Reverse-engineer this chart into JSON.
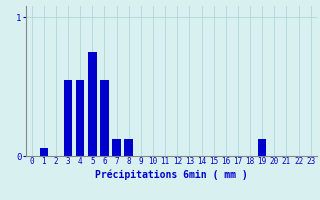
{
  "title": "",
  "xlabel": "Précipitations 6min ( mm )",
  "categories": [
    0,
    1,
    2,
    3,
    4,
    5,
    6,
    7,
    8,
    9,
    10,
    11,
    12,
    13,
    14,
    15,
    16,
    17,
    18,
    19,
    20,
    21,
    22,
    23
  ],
  "values": [
    0.0,
    0.06,
    0.0,
    0.55,
    0.55,
    0.75,
    0.55,
    0.12,
    0.12,
    0.0,
    0.0,
    0.0,
    0.0,
    0.0,
    0.0,
    0.0,
    0.0,
    0.0,
    0.0,
    0.12,
    0.0,
    0.0,
    0.0,
    0.0
  ],
  "bar_color": "#0000cc",
  "bg_color": "#d8f0f0",
  "grid_color": "#b0d8d8",
  "axis_color": "#888888",
  "text_color": "#0000cc",
  "ylim": [
    0,
    1.08
  ],
  "yticks": [
    0,
    1
  ],
  "xlabel_fontsize": 7,
  "tick_fontsize": 5.5
}
